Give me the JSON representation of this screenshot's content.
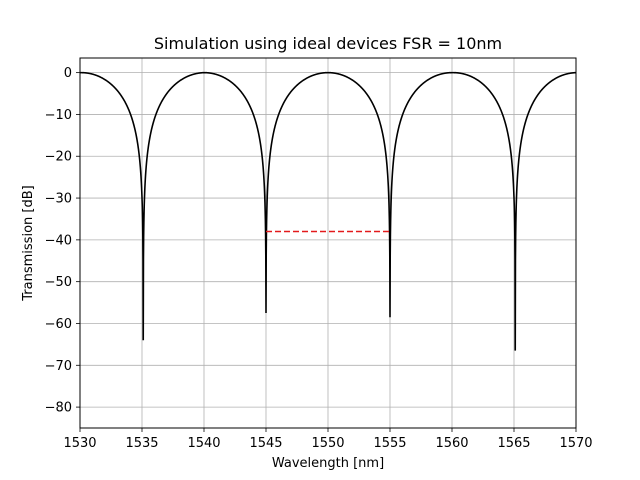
{
  "chart_data": {
    "type": "line",
    "title": "Simulation using ideal devices FSR = 10nm",
    "xlabel": "Wavelength [nm]",
    "ylabel": "Transmission [dB]",
    "xlim": [
      1530,
      1570
    ],
    "ylim": [
      -85,
      3.5
    ],
    "x_ticks": [
      1530,
      1535,
      1540,
      1545,
      1550,
      1555,
      1560,
      1565,
      1570
    ],
    "y_ticks": [
      0,
      -10,
      -20,
      -30,
      -40,
      -50,
      -60,
      -70,
      -80
    ],
    "x_tick_labels": [
      "1530",
      "1535",
      "1540",
      "1545",
      "1550",
      "1555",
      "1560",
      "1565",
      "1570"
    ],
    "y_tick_labels": [
      "0",
      "−10",
      "−20",
      "−30",
      "−40",
      "−50",
      "−60",
      "−70",
      "−80"
    ],
    "grid": true,
    "series": [
      {
        "style": "solid",
        "color": "#000000",
        "shape": "notch",
        "maxima_x": [
          1530,
          1540,
          1550,
          1560,
          1570
        ],
        "maximum_y": 0,
        "notches": [
          {
            "x": 1535.1,
            "y": -64
          },
          {
            "x": 1545.0,
            "y": -57.5
          },
          {
            "x": 1555.0,
            "y": -58.5
          },
          {
            "x": 1565.1,
            "y": -66.5
          }
        ]
      },
      {
        "style": "dashed",
        "color": "#e31a1c",
        "x": [
          1545,
          1555
        ],
        "y": [
          -38,
          -38
        ]
      }
    ]
  }
}
